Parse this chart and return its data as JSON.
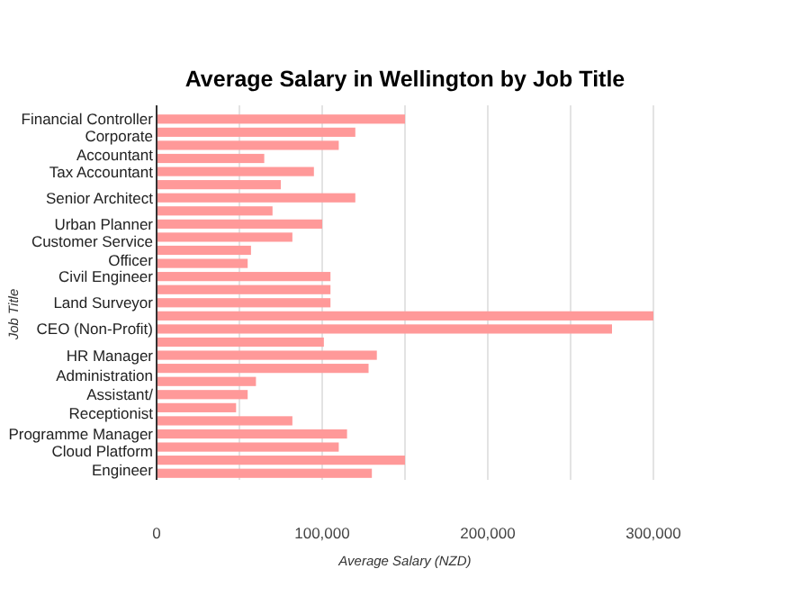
{
  "chart_data": {
    "type": "bar",
    "orientation": "horizontal",
    "title": "Average Salary in Wellington by Job Title",
    "xlabel": "Average Salary (NZD)",
    "ylabel": "Job Title",
    "categories": [
      "Financial Controller",
      null,
      "Corporate\nAccountant",
      null,
      "Tax Accountant",
      null,
      "Senior Architect",
      null,
      "Urban Planner",
      null,
      "Customer Service\nOfficer",
      null,
      "Civil Engineer",
      null,
      "Land Surveyor",
      null,
      "CEO (Non-Profit)",
      null,
      "HR Manager",
      null,
      null,
      "Administration\nAssistant/\nReceptionist",
      null,
      null,
      "Programme Manager",
      null,
      "Cloud Platform\nEngineer",
      null
    ],
    "values": [
      150000,
      120000,
      110000,
      65000,
      95000,
      75000,
      120000,
      70000,
      100000,
      82000,
      57000,
      55000,
      105000,
      105000,
      105000,
      300000,
      275000,
      101000,
      133000,
      128000,
      60000,
      55000,
      48000,
      82000,
      115000,
      110000,
      150000,
      130000
    ],
    "color": "#ff9999",
    "xlim": [
      0,
      300000
    ],
    "xticks": [
      0,
      {
        "value": 50000,
        "label": null
      },
      {
        "value": 100000,
        "label": "100,000"
      },
      {
        "value": 150000,
        "label": null
      },
      {
        "value": 200000,
        "label": "200,000"
      },
      {
        "value": 250000,
        "label": null
      },
      {
        "value": 300000,
        "label": "300,000"
      }
    ],
    "grid": "x"
  }
}
